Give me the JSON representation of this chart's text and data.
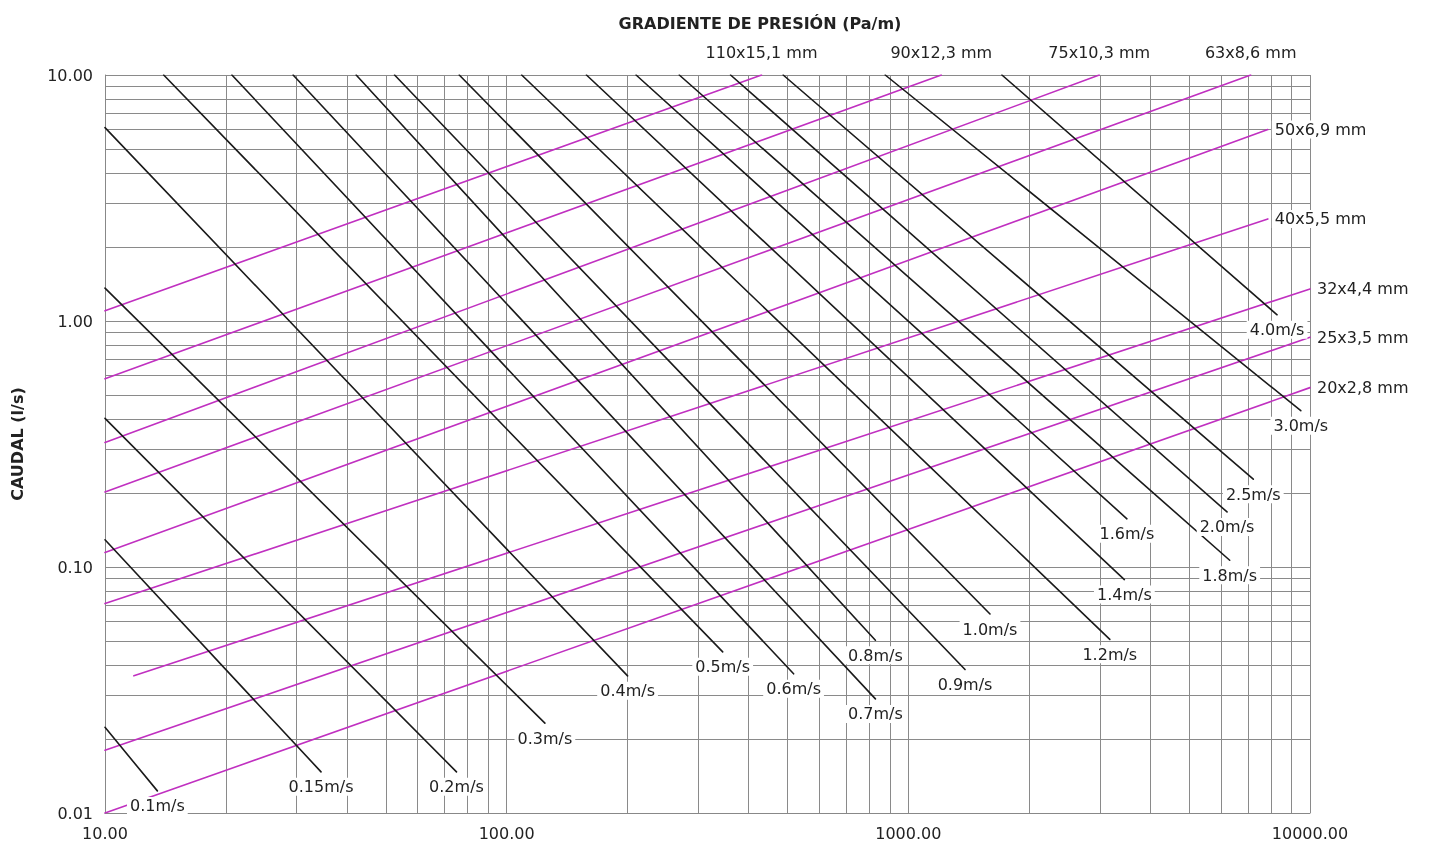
{
  "chart_data": {
    "type": "line",
    "xlabel": "GRADIENTE DE PRESIÓN (Pa/m)",
    "ylabel": "CAUDAL (l/s)",
    "log": "xy",
    "grid": true,
    "marker": "none",
    "line_style": "solid",
    "xlim": [
      10,
      10000
    ],
    "ylim": [
      0.01,
      10
    ],
    "xticks": [
      {
        "value": 10,
        "label": "10.00"
      },
      {
        "value": 20,
        "label": null
      },
      {
        "value": 30,
        "label": null
      },
      {
        "value": 40,
        "label": null
      },
      {
        "value": 50,
        "label": null
      },
      {
        "value": 60,
        "label": null
      },
      {
        "value": 70,
        "label": null
      },
      {
        "value": 80,
        "label": null
      },
      {
        "value": 90,
        "label": null
      },
      {
        "value": 100,
        "label": "100.00"
      },
      {
        "value": 200,
        "label": null
      },
      {
        "value": 300,
        "label": null
      },
      {
        "value": 400,
        "label": null
      },
      {
        "value": 500,
        "label": null
      },
      {
        "value": 600,
        "label": null
      },
      {
        "value": 700,
        "label": null
      },
      {
        "value": 800,
        "label": null
      },
      {
        "value": 900,
        "label": null
      },
      {
        "value": 1000,
        "label": "1000.00"
      },
      {
        "value": 2000,
        "label": null
      },
      {
        "value": 3000,
        "label": null
      },
      {
        "value": 4000,
        "label": null
      },
      {
        "value": 5000,
        "label": null
      },
      {
        "value": 6000,
        "label": null
      },
      {
        "value": 7000,
        "label": null
      },
      {
        "value": 8000,
        "label": null
      },
      {
        "value": 9000,
        "label": null
      },
      {
        "value": 10000,
        "label": "10000.00"
      }
    ],
    "yticks": [
      {
        "value": 0.01,
        "label": "0.01"
      },
      {
        "value": 0.02,
        "label": null
      },
      {
        "value": 0.03,
        "label": null
      },
      {
        "value": 0.04,
        "label": null
      },
      {
        "value": 0.05,
        "label": null
      },
      {
        "value": 0.06,
        "label": null
      },
      {
        "value": 0.07,
        "label": null
      },
      {
        "value": 0.08,
        "label": null
      },
      {
        "value": 0.09,
        "label": null
      },
      {
        "value": 0.1,
        "label": "0.10"
      },
      {
        "value": 0.2,
        "label": null
      },
      {
        "value": 0.3,
        "label": null
      },
      {
        "value": 0.4,
        "label": null
      },
      {
        "value": 0.5,
        "label": null
      },
      {
        "value": 0.6,
        "label": null
      },
      {
        "value": 0.7,
        "label": null
      },
      {
        "value": 0.8,
        "label": null
      },
      {
        "value": 0.9,
        "label": null
      },
      {
        "value": 1,
        "label": "1.00"
      },
      {
        "value": 2,
        "label": null
      },
      {
        "value": 3,
        "label": null
      },
      {
        "value": 4,
        "label": null
      },
      {
        "value": 5,
        "label": null
      },
      {
        "value": 6,
        "label": null
      },
      {
        "value": 7,
        "label": null
      },
      {
        "value": 8,
        "label": null
      },
      {
        "value": 9,
        "label": null
      },
      {
        "value": 10,
        "label": "10.00"
      }
    ],
    "series": [
      {
        "name": "20x2,8 mm",
        "color": "#c030c0",
        "x": [
          10,
          10000
        ],
        "values": [
          0.01,
          0.536
        ]
      },
      {
        "name": "25x3,5 mm",
        "color": "#c030c0",
        "x": [
          10,
          10000
        ],
        "values": [
          0.018,
          0.858
        ]
      },
      {
        "name": "32x4,4 mm",
        "color": "#c030c0",
        "x": [
          11.8,
          10000
        ],
        "values": [
          0.0361,
          1.35
        ]
      },
      {
        "name": "40x5,5 mm",
        "color": "#c030c0",
        "x": [
          10,
          7852
        ],
        "values": [
          0.071,
          2.6
        ]
      },
      {
        "name": "50x6,9 mm",
        "color": "#c030c0",
        "x": [
          10,
          7852
        ],
        "values": [
          0.1145,
          6.0
        ]
      },
      {
        "name": "63x8,6 mm",
        "color": "#c030c0",
        "x": [
          10,
          7118
        ],
        "values": [
          0.202,
          10
        ]
      },
      {
        "name": "75x10,3 mm",
        "color": "#c030c0",
        "x": [
          10,
          2987
        ],
        "values": [
          0.321,
          10
        ]
      },
      {
        "name": "90x12,3 mm",
        "color": "#c030c0",
        "x": [
          10,
          1208
        ],
        "values": [
          0.582,
          10
        ]
      },
      {
        "name": "110x15,1 mm",
        "color": "#c030c0",
        "x": [
          10,
          431
        ],
        "values": [
          1.1,
          10
        ]
      },
      {
        "name": "0.1m/s",
        "color": "#1a1a1a",
        "x": [
          10,
          13.5
        ],
        "values": [
          0.0223,
          0.0123
        ]
      },
      {
        "name": "0.15m/s",
        "color": "#1a1a1a",
        "x": [
          10,
          34.5
        ],
        "values": [
          0.129,
          0.0147
        ]
      },
      {
        "name": "0.2m/s",
        "color": "#1a1a1a",
        "x": [
          10,
          75
        ],
        "values": [
          0.402,
          0.0147
        ]
      },
      {
        "name": "0.3m/s",
        "color": "#1a1a1a",
        "x": [
          10,
          124.5
        ],
        "values": [
          1.36,
          0.0232
        ]
      },
      {
        "name": "0.4m/s",
        "color": "#1a1a1a",
        "x": [
          10,
          200
        ],
        "values": [
          6.11,
          0.0361
        ]
      },
      {
        "name": "0.5m/s",
        "color": "#1a1a1a",
        "x": [
          14,
          345
        ],
        "values": [
          10,
          0.0452
        ]
      },
      {
        "name": "0.6m/s",
        "color": "#1a1a1a",
        "x": [
          20.7,
          518
        ],
        "values": [
          10,
          0.0368
        ]
      },
      {
        "name": "0.7m/s",
        "color": "#1a1a1a",
        "x": [
          29.4,
          828
        ],
        "values": [
          10,
          0.0291
        ]
      },
      {
        "name": "0.8m/s",
        "color": "#1a1a1a",
        "x": [
          42.2,
          828
        ],
        "values": [
          10,
          0.0504
        ]
      },
      {
        "name": "0.9m/s",
        "color": "#1a1a1a",
        "x": [
          52.6,
          1384
        ],
        "values": [
          10,
          0.0383
        ]
      },
      {
        "name": "1.0m/s",
        "color": "#1a1a1a",
        "x": [
          76.2,
          1597
        ],
        "values": [
          10,
          0.0644
        ]
      },
      {
        "name": "1.2m/s",
        "color": "#1a1a1a",
        "x": [
          109,
          3174
        ],
        "values": [
          10,
          0.0508
        ]
      },
      {
        "name": "1.4m/s",
        "color": "#1a1a1a",
        "x": [
          158,
          3450
        ],
        "values": [
          10,
          0.0889
        ]
      },
      {
        "name": "1.6m/s",
        "color": "#1a1a1a",
        "x": [
          210,
          3501
        ],
        "values": [
          10,
          0.157
        ]
      },
      {
        "name": "1.8m/s",
        "color": "#1a1a1a",
        "x": [
          269,
          6310
        ],
        "values": [
          10,
          0.1065
        ]
      },
      {
        "name": "2.0m/s",
        "color": "#1a1a1a",
        "x": [
          361,
          6215
        ],
        "values": [
          10,
          0.1674
        ]
      },
      {
        "name": "2.5m/s",
        "color": "#1a1a1a",
        "x": [
          488,
          7224
        ],
        "values": [
          10,
          0.2275
        ]
      },
      {
        "name": "3.0m/s",
        "color": "#1a1a1a",
        "x": [
          876,
          9485
        ],
        "values": [
          10,
          0.432
        ]
      },
      {
        "name": "4.0m/s",
        "color": "#1a1a1a",
        "x": [
          1710,
          8280
        ],
        "values": [
          10,
          1.06
        ]
      }
    ]
  }
}
